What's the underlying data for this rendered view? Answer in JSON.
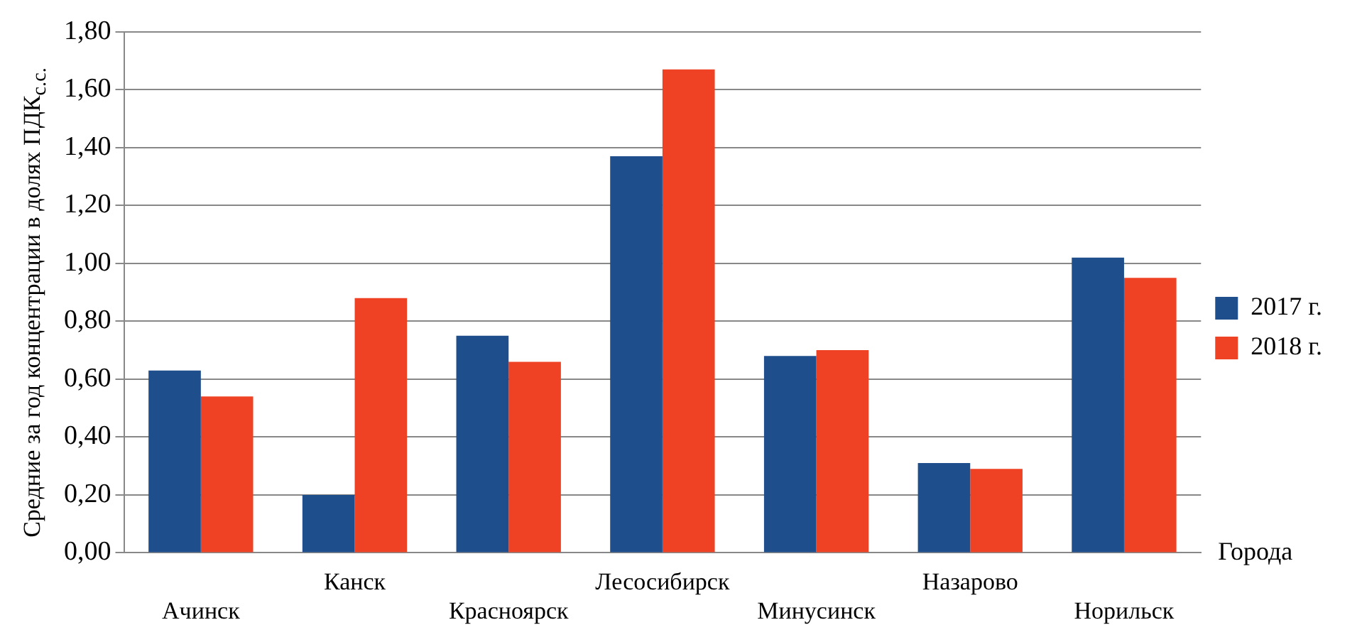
{
  "chart_data": {
    "type": "bar",
    "ylabel": "Средние за год концентрации в долях ПДК$_{с.с.}$",
    "xlabel": "Города",
    "categories": [
      "Ачинск",
      "Канск",
      "Красноярск",
      "Лесосибирск",
      "Минусинск",
      "Назарово",
      "Норильск"
    ],
    "series": [
      {
        "name": "2017 г.",
        "color": "#1f4e8c",
        "values": [
          0.63,
          0.2,
          0.75,
          1.37,
          0.68,
          0.31,
          1.02
        ]
      },
      {
        "name": "2018 г.",
        "color": "#ef4123",
        "values": [
          0.54,
          0.88,
          0.66,
          1.67,
          0.7,
          0.29,
          0.95
        ]
      }
    ],
    "ylim": [
      0,
      1.8
    ],
    "yticks": [
      {
        "value": 0,
        "label": "0,00"
      },
      {
        "value": 0.2,
        "label": "0,20"
      },
      {
        "value": 0.4,
        "label": "0,40"
      },
      {
        "value": 0.6,
        "label": "0,60"
      },
      {
        "value": 0.8,
        "label": "0,80"
      },
      {
        "value": 1.0,
        "label": "1,00"
      },
      {
        "value": 1.2,
        "label": "1,20"
      },
      {
        "value": 1.4,
        "label": "1,40"
      },
      {
        "value": 1.6,
        "label": "1,60"
      },
      {
        "value": 1.8,
        "label": "1,80"
      }
    ],
    "grid": "y",
    "legend": "right"
  }
}
